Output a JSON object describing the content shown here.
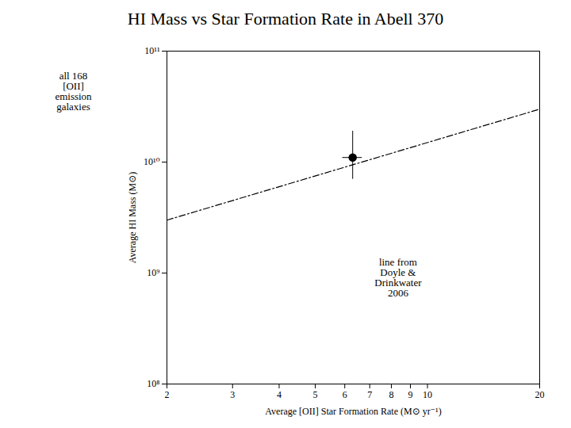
{
  "chart_data": {
    "type": "scatter",
    "title": "HI Mass vs Star Formation Rate in Abell 370",
    "xlabel": "Average [OII] Star Formation Rate (M⊙ yr⁻¹)",
    "ylabel": "Average HI Mass (M⊙)",
    "annotations": [
      "all 168\n[OII]\nemission\ngalaxies",
      "line from\nDoyle &\nDrinkwater\n2006"
    ],
    "log": true,
    "grid": false,
    "xlim": [
      2,
      20
    ],
    "ylim": [
      100000000.0,
      100000000000.0
    ],
    "xticks": [
      2,
      3,
      4,
      5,
      6,
      7,
      8,
      9,
      10,
      20
    ],
    "yticks": [
      {
        "value": 100000000.0,
        "label": "10⁸"
      },
      {
        "value": 1000000000.0,
        "label": "10⁹"
      },
      {
        "value": 10000000000.0,
        "label": "10¹⁰"
      },
      {
        "value": 100000000000.0,
        "label": "10¹¹"
      }
    ],
    "series": [
      {
        "type": "line",
        "x": [
          2.0,
          20.0
        ],
        "values": [
          3000000000.0,
          30000000000.0
        ],
        "color": "black",
        "line_style": "dashdot"
      },
      {
        "type": "scatter",
        "x": [
          6.3
        ],
        "values": [
          11000000000.0
        ],
        "xerr": [
          0.38
        ],
        "yerr_down": [
          4000000000.0
        ],
        "yerr_up": [
          8000000000.0
        ],
        "color": "black",
        "marker": "circle"
      }
    ]
  }
}
